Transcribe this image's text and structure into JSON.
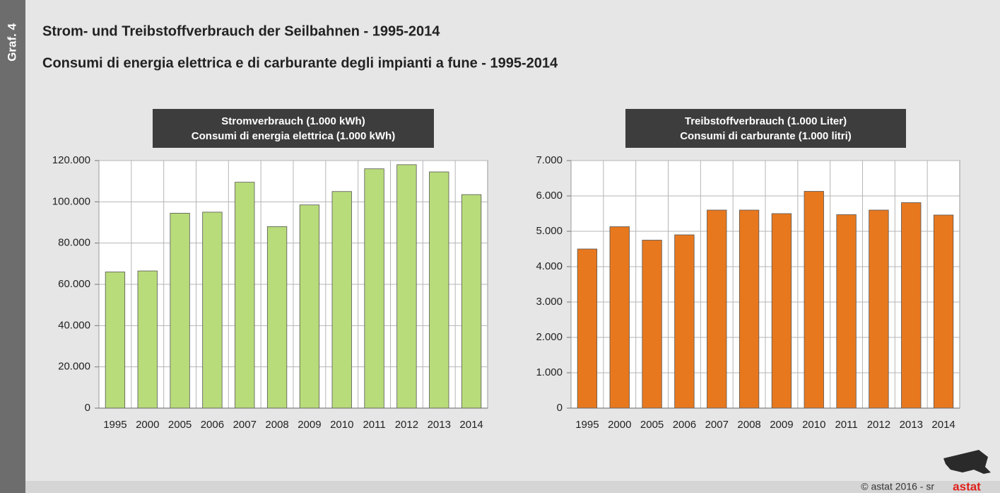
{
  "page": {
    "label": "Graf. 4",
    "title": "Strom- und Treibstoffverbrauch der Seilbahnen - 1995-2014",
    "subtitle": "Consumi di energia elettrica e di carburante degli impianti a fune - 1995-2014",
    "footer": "© astat 2016 - sr",
    "logo": "astat"
  },
  "chart_data": [
    {
      "type": "bar",
      "title": "Stromverbrauch (1.000 kWh)",
      "subtitle": "Consumi di energia elettrica (1.000 kWh)",
      "categories": [
        "1995",
        "2000",
        "2005",
        "2006",
        "2007",
        "2008",
        "2009",
        "2010",
        "2011",
        "2012",
        "2013",
        "2014"
      ],
      "values": [
        66000,
        66500,
        94500,
        95000,
        109500,
        88000,
        98500,
        105000,
        116000,
        118000,
        114500,
        103500
      ],
      "color": "#b8dc7a",
      "ylim": [
        0,
        120000
      ],
      "yticks": [
        0,
        {
          "value": 20000,
          "label": "20.000"
        },
        {
          "value": 40000,
          "label": "40.000"
        },
        {
          "value": 60000,
          "label": "60.000"
        },
        {
          "value": 80000,
          "label": "80.000"
        },
        {
          "value": 100000,
          "label": "100.000"
        },
        {
          "value": 120000,
          "label": "120.000"
        }
      ],
      "grid": true
    },
    {
      "type": "bar",
      "title": "Treibstoffverbrauch (1.000 Liter)",
      "subtitle": "Consumi di carburante (1.000 litri)",
      "categories": [
        "1995",
        "2000",
        "2005",
        "2006",
        "2007",
        "2008",
        "2009",
        "2010",
        "2011",
        "2012",
        "2013",
        "2014"
      ],
      "values": [
        4500,
        5130,
        4750,
        4900,
        5600,
        5600,
        5500,
        6130,
        5470,
        5600,
        5810,
        5460
      ],
      "color": "#e8781e",
      "ylim": [
        0,
        7000
      ],
      "yticks": [
        0,
        {
          "value": 1000,
          "label": "1.000"
        },
        {
          "value": 2000,
          "label": "2.000"
        },
        {
          "value": 3000,
          "label": "3.000"
        },
        {
          "value": 4000,
          "label": "4.000"
        },
        {
          "value": 5000,
          "label": "5.000"
        },
        {
          "value": 6000,
          "label": "6.000"
        },
        {
          "value": 7000,
          "label": "7.000"
        }
      ],
      "grid": true
    }
  ]
}
